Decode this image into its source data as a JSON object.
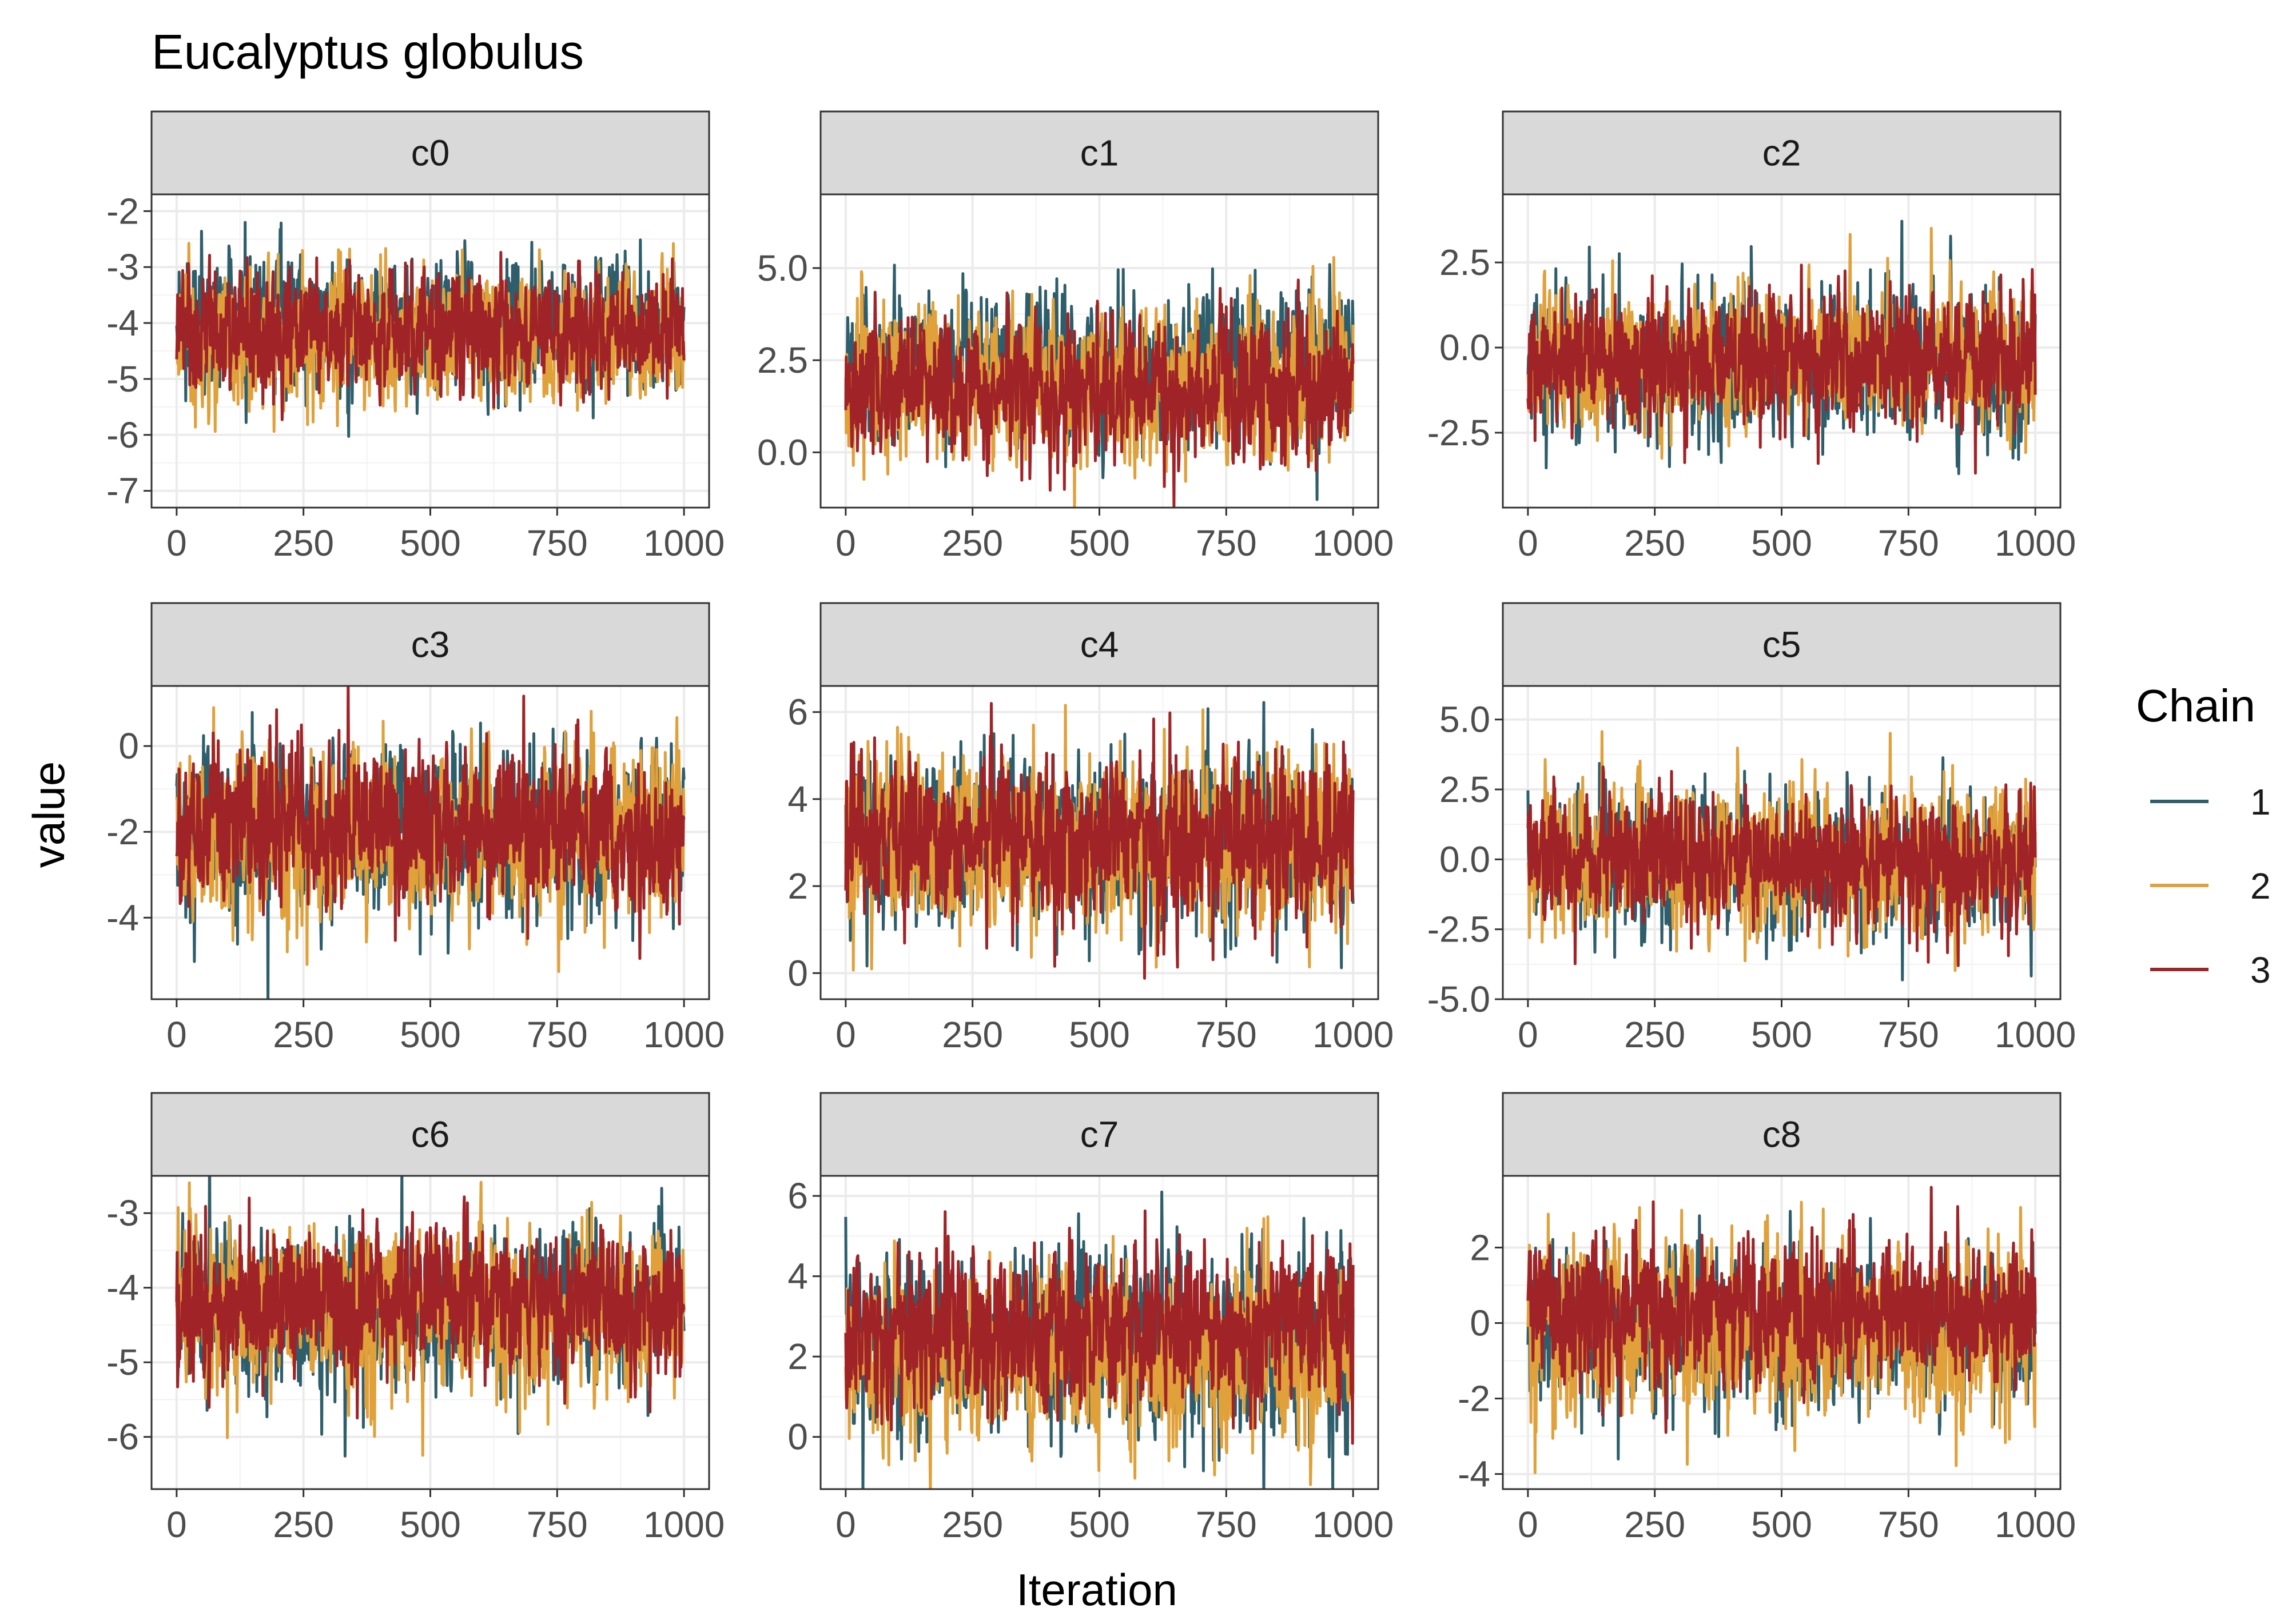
{
  "chart_data": {
    "type": "line",
    "title": "Eucalyptus globulus",
    "xlabel": "Iteration",
    "ylabel": "value",
    "legend": {
      "title": "Chain",
      "placement": "right",
      "entries": [
        "1",
        "2",
        "3"
      ]
    },
    "series_colors": {
      "1": "#2e5e6b",
      "2": "#e0a03a",
      "3": "#a02427"
    },
    "grid": true,
    "panels": [
      {
        "name": "c0",
        "xlim": [
          0,
          1000
        ],
        "ylim": [
          -7.3,
          -1.7
        ],
        "yticks": [
          -7,
          -6,
          -5,
          -4,
          -3,
          -2
        ],
        "ytick_labels": [
          "-7",
          "-6",
          "-5",
          "-4",
          "-3",
          "-2"
        ],
        "xticks": [
          0,
          250,
          500,
          750,
          1000
        ],
        "series": [
          {
            "name": "1",
            "center": -4.05,
            "spread": 0.62
          },
          {
            "name": "2",
            "center": -4.25,
            "spread": 0.62
          },
          {
            "name": "3",
            "center": -4.15,
            "spread": 0.55
          }
        ]
      },
      {
        "name": "c1",
        "xlim": [
          0,
          1000
        ],
        "ylim": [
          -1.5,
          7.0
        ],
        "yticks": [
          0,
          2.5,
          5
        ],
        "ytick_labels": [
          "0.0",
          "2.5",
          "5.0"
        ],
        "xticks": [
          0,
          250,
          500,
          750,
          1000
        ],
        "series": [
          {
            "name": "1",
            "center": 2.3,
            "spread": 1.05
          },
          {
            "name": "2",
            "center": 1.8,
            "spread": 1.05
          },
          {
            "name": "3",
            "center": 1.7,
            "spread": 0.95
          }
        ]
      },
      {
        "name": "c2",
        "xlim": [
          0,
          1000
        ],
        "ylim": [
          -4.7,
          4.5
        ],
        "yticks": [
          -2.5,
          0,
          2.5
        ],
        "ytick_labels": [
          "-2.5",
          "0.0",
          "2.5"
        ],
        "xticks": [
          0,
          250,
          500,
          750,
          1000
        ],
        "series": [
          {
            "name": "1",
            "center": -0.5,
            "spread": 1.2
          },
          {
            "name": "2",
            "center": -0.3,
            "spread": 1.05
          },
          {
            "name": "3",
            "center": -0.35,
            "spread": 1.0
          }
        ]
      },
      {
        "name": "c3",
        "xlim": [
          0,
          1000
        ],
        "ylim": [
          -5.9,
          1.4
        ],
        "yticks": [
          -4,
          -2,
          0
        ],
        "ytick_labels": [
          "-4",
          "-2",
          "0"
        ],
        "xticks": [
          0,
          250,
          500,
          750,
          1000
        ],
        "series": [
          {
            "name": "1",
            "center": -2.0,
            "spread": 1.0
          },
          {
            "name": "2",
            "center": -2.0,
            "spread": 1.05
          },
          {
            "name": "3",
            "center": -1.9,
            "spread": 0.95
          }
        ]
      },
      {
        "name": "c4",
        "xlim": [
          0,
          1000
        ],
        "ylim": [
          -0.6,
          6.6
        ],
        "yticks": [
          0,
          2,
          4,
          6
        ],
        "ytick_labels": [
          "0",
          "2",
          "4",
          "6"
        ],
        "xticks": [
          0,
          250,
          500,
          750,
          1000
        ],
        "series": [
          {
            "name": "1",
            "center": 3.0,
            "spread": 1.0
          },
          {
            "name": "2",
            "center": 3.0,
            "spread": 1.05
          },
          {
            "name": "3",
            "center": 3.1,
            "spread": 0.95
          }
        ]
      },
      {
        "name": "c5",
        "xlim": [
          0,
          1000
        ],
        "ylim": [
          -5.0,
          6.2
        ],
        "yticks": [
          -5,
          -2.5,
          0,
          2.5,
          5
        ],
        "ytick_labels": [
          "-5.0",
          "-2.5",
          "0.0",
          "2.5",
          "5.0"
        ],
        "xticks": [
          0,
          250,
          500,
          750,
          1000
        ],
        "series": [
          {
            "name": "1",
            "center": -0.2,
            "spread": 1.3
          },
          {
            "name": "2",
            "center": -0.1,
            "spread": 1.3
          },
          {
            "name": "3",
            "center": -0.1,
            "spread": 1.2
          }
        ]
      },
      {
        "name": "c6",
        "xlim": [
          0,
          1000
        ],
        "ylim": [
          -6.7,
          -2.5
        ],
        "yticks": [
          -6,
          -5,
          -4,
          -3
        ],
        "ytick_labels": [
          "-6",
          "-5",
          "-4",
          "-3"
        ],
        "xticks": [
          0,
          250,
          500,
          750,
          1000
        ],
        "series": [
          {
            "name": "1",
            "center": -4.3,
            "spread": 0.55
          },
          {
            "name": "2",
            "center": -4.35,
            "spread": 0.55
          },
          {
            "name": "3",
            "center": -4.2,
            "spread": 0.5
          }
        ]
      },
      {
        "name": "c7",
        "xlim": [
          0,
          1000
        ],
        "ylim": [
          -1.3,
          6.5
        ],
        "yticks": [
          0,
          2,
          4,
          6
        ],
        "ytick_labels": [
          "0",
          "2",
          "4",
          "6"
        ],
        "xticks": [
          0,
          250,
          500,
          750,
          1000
        ],
        "series": [
          {
            "name": "1",
            "center": 2.3,
            "spread": 1.2
          },
          {
            "name": "2",
            "center": 2.0,
            "spread": 1.1
          },
          {
            "name": "3",
            "center": 2.7,
            "spread": 1.0
          }
        ]
      },
      {
        "name": "c8",
        "xlim": [
          0,
          1000
        ],
        "ylim": [
          -4.4,
          3.9
        ],
        "yticks": [
          -4,
          -2,
          0,
          2
        ],
        "ytick_labels": [
          "-4",
          "-2",
          "0",
          "2"
        ],
        "xticks": [
          0,
          250,
          500,
          750,
          1000
        ],
        "series": [
          {
            "name": "1",
            "center": -0.3,
            "spread": 1.1
          },
          {
            "name": "2",
            "center": -0.2,
            "spread": 1.2
          },
          {
            "name": "3",
            "center": 0.3,
            "spread": 1.0
          }
        ]
      }
    ]
  }
}
